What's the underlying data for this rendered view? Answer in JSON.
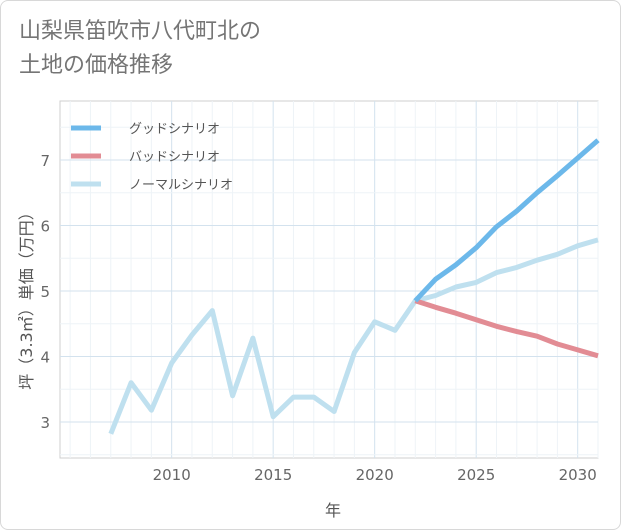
{
  "title_lines": [
    "山梨県笛吹市八代町北の",
    "土地の価格推移"
  ],
  "chart_data": {
    "type": "line",
    "title": "山梨県笛吹市八代町北の土地の価格推移",
    "xlabel": "年",
    "ylabel": "坪（3.3㎡）単価（万円）",
    "xlim": [
      2004.5,
      2031
    ],
    "ylim": [
      2.45,
      7.9
    ],
    "x_ticks": [
      2010,
      2015,
      2020,
      2025,
      2030
    ],
    "y_ticks": [
      3,
      4,
      5,
      6,
      7
    ],
    "legend_position": "top-left",
    "series": [
      {
        "name": "グッドシナリオ",
        "color": "#6cb8ea",
        "x": [
          2022,
          2023,
          2024,
          2025,
          2026,
          2027,
          2028,
          2029,
          2030,
          2031
        ],
        "y": [
          4.85,
          5.18,
          5.4,
          5.66,
          5.98,
          6.22,
          6.5,
          6.76,
          7.03,
          7.3
        ]
      },
      {
        "name": "バッドシナリオ",
        "color": "#e28c94",
        "x": [
          2022,
          2023,
          2024,
          2025,
          2026,
          2027,
          2028,
          2029,
          2030,
          2031
        ],
        "y": [
          4.85,
          4.75,
          4.66,
          4.56,
          4.46,
          4.38,
          4.31,
          4.19,
          4.1,
          4.01
        ]
      },
      {
        "name": "ノーマルシナリオ",
        "color": "#bfe0ef",
        "x": [
          2007,
          2008,
          2009,
          2010,
          2011,
          2012,
          2013,
          2014,
          2015,
          2016,
          2017,
          2018,
          2019,
          2020,
          2021,
          2022,
          2023,
          2024,
          2025,
          2026,
          2027,
          2028,
          2029,
          2030,
          2031
        ],
        "y": [
          2.82,
          3.6,
          3.18,
          3.9,
          4.33,
          4.7,
          3.4,
          4.28,
          3.08,
          3.38,
          3.38,
          3.16,
          4.06,
          4.53,
          4.4,
          4.85,
          4.93,
          5.06,
          5.13,
          5.28,
          5.36,
          5.47,
          5.56,
          5.69,
          5.78
        ]
      }
    ]
  }
}
